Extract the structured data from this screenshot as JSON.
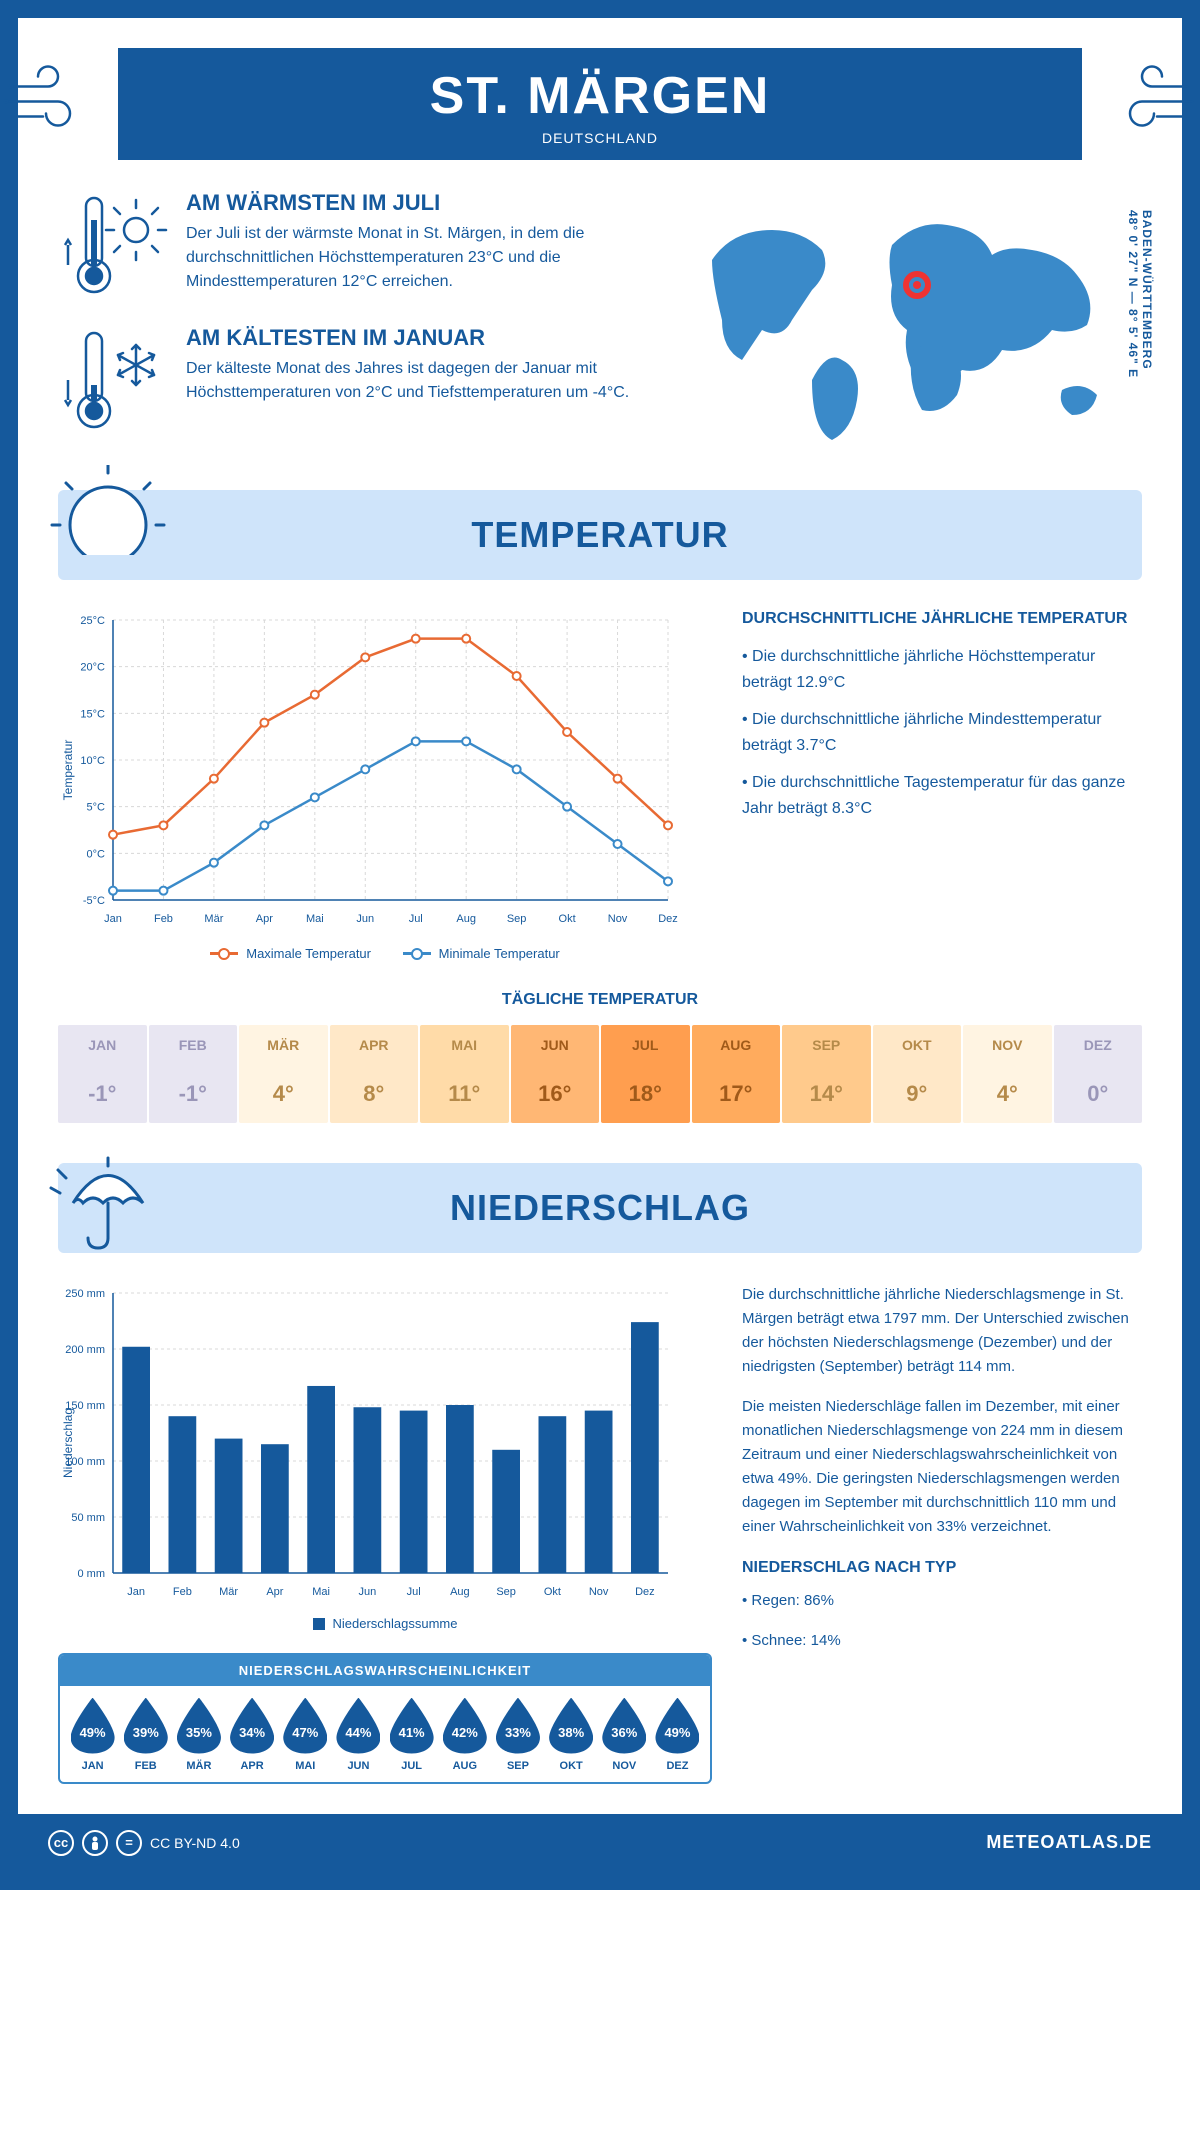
{
  "colors": {
    "primary": "#15599c",
    "lightBlue": "#cfe4fa",
    "midBlue": "#3a8ac9",
    "maxLine": "#e86a33",
    "minLine": "#3a8ac9",
    "grid": "#d8d8d8"
  },
  "header": {
    "title": "ST. MÄRGEN",
    "country": "DEUTSCHLAND"
  },
  "warm": {
    "title": "AM WÄRMSTEN IM JULI",
    "text": "Der Juli ist der wärmste Monat in St. Märgen, in dem die durchschnittlichen Höchsttemperaturen 23°C und die Mindesttemperaturen 12°C erreichen."
  },
  "cold": {
    "title": "AM KÄLTESTEN IM JANUAR",
    "text": "Der kälteste Monat des Jahres ist dagegen der Januar mit Höchsttemperaturen von 2°C und Tiefsttemperaturen um -4°C."
  },
  "coordinates": "48° 0' 27\" N — 8° 5' 46\" E",
  "region": "BADEN-WÜRTTEMBERG",
  "sections": {
    "temp": "TEMPERATUR",
    "precip": "NIEDERSCHLAG"
  },
  "tempChart": {
    "months": [
      "Jan",
      "Feb",
      "Mär",
      "Apr",
      "Mai",
      "Jun",
      "Jul",
      "Aug",
      "Sep",
      "Okt",
      "Nov",
      "Dez"
    ],
    "max": [
      2,
      3,
      8,
      14,
      17,
      21,
      23,
      23,
      19,
      13,
      8,
      3
    ],
    "min": [
      -4,
      -4,
      -1,
      3,
      6,
      9,
      12,
      12,
      9,
      5,
      1,
      -3
    ],
    "ylim": [
      -5,
      25
    ],
    "ystep": 5,
    "ylabel": "Temperatur",
    "legend_max": "Maximale Temperatur",
    "legend_min": "Minimale Temperatur"
  },
  "tempStats": {
    "title": "DURCHSCHNITTLICHE JÄHRLICHE TEMPERATUR",
    "b1": "• Die durchschnittliche jährliche Höchsttemperatur beträgt 12.9°C",
    "b2": "• Die durchschnittliche jährliche Mindesttemperatur beträgt 3.7°C",
    "b3": "• Die durchschnittliche Tagestemperatur für das ganze Jahr beträgt 8.3°C"
  },
  "dailyTemp": {
    "title": "TÄGLICHE TEMPERATUR",
    "months": [
      "JAN",
      "FEB",
      "MÄR",
      "APR",
      "MAI",
      "JUN",
      "JUL",
      "AUG",
      "SEP",
      "OKT",
      "NOV",
      "DEZ"
    ],
    "values": [
      "-1°",
      "-1°",
      "4°",
      "8°",
      "11°",
      "16°",
      "18°",
      "17°",
      "14°",
      "9°",
      "4°",
      "0°"
    ],
    "bg": [
      "#e8e6f2",
      "#e8e6f2",
      "#fff4e2",
      "#ffe8c8",
      "#ffdba8",
      "#ffb774",
      "#ff9e4f",
      "#ffab5d",
      "#ffca8c",
      "#ffe8c8",
      "#fff4e2",
      "#e8e6f2"
    ],
    "fg": [
      "#9a96b8",
      "#9a96b8",
      "#b58a4a",
      "#b58a4a",
      "#b58a4a",
      "#a05a1a",
      "#a05a1a",
      "#a05a1a",
      "#b58a4a",
      "#b58a4a",
      "#b58a4a",
      "#9a96b8"
    ]
  },
  "precipChart": {
    "months": [
      "Jan",
      "Feb",
      "Mär",
      "Apr",
      "Mai",
      "Jun",
      "Jul",
      "Aug",
      "Sep",
      "Okt",
      "Nov",
      "Dez"
    ],
    "values": [
      202,
      140,
      120,
      115,
      167,
      148,
      145,
      150,
      110,
      140,
      145,
      224
    ],
    "ylim": [
      0,
      250
    ],
    "ystep": 50,
    "ylabel": "Niederschlag",
    "legend": "Niederschlagssumme"
  },
  "precipText": {
    "p1": "Die durchschnittliche jährliche Niederschlagsmenge in St. Märgen beträgt etwa 1797 mm. Der Unterschied zwischen der höchsten Niederschlagsmenge (Dezember) und der niedrigsten (September) beträgt 114 mm.",
    "p2": "Die meisten Niederschläge fallen im Dezember, mit einer monatlichen Niederschlagsmenge von 224 mm in diesem Zeitraum und einer Niederschlagswahrscheinlichkeit von etwa 49%. Die geringsten Niederschlagsmengen werden dagegen im September mit durchschnittlich 110 mm und einer Wahrscheinlichkeit von 33% verzeichnet.",
    "typeTitle": "NIEDERSCHLAG NACH TYP",
    "type1": "• Regen: 86%",
    "type2": "• Schnee: 14%"
  },
  "prob": {
    "title": "NIEDERSCHLAGSWAHRSCHEINLICHKEIT",
    "months": [
      "JAN",
      "FEB",
      "MÄR",
      "APR",
      "MAI",
      "JUN",
      "JUL",
      "AUG",
      "SEP",
      "OKT",
      "NOV",
      "DEZ"
    ],
    "values": [
      "49%",
      "39%",
      "35%",
      "34%",
      "47%",
      "44%",
      "41%",
      "42%",
      "33%",
      "38%",
      "36%",
      "49%"
    ]
  },
  "footer": {
    "license": "CC BY-ND 4.0",
    "site": "METEOATLAS.DE"
  }
}
